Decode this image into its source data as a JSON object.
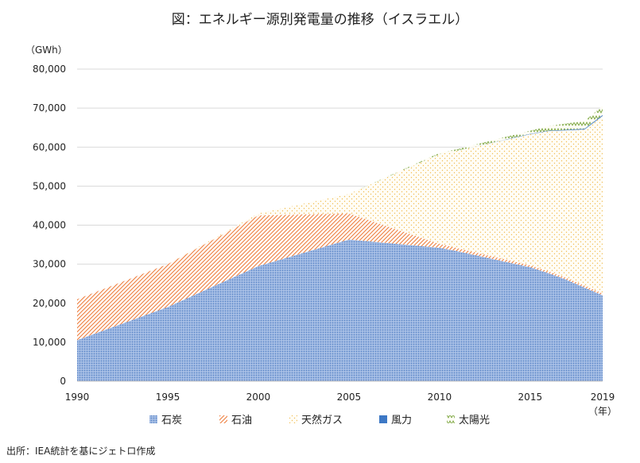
{
  "title": "図：エネルギー源別発電量の推移（イスラエル）",
  "source": "出所：IEA統計を基にジェトロ作成",
  "chart_data": {
    "type": "area",
    "stacked": true,
    "title": "図：エネルギー源別発電量の推移（イスラエル）",
    "ylabel": "（GWh）",
    "xlabel": "（年）",
    "ylim": [
      0,
      80000
    ],
    "xlim": [
      1990,
      2019
    ],
    "yticks": [
      "0",
      "10,000",
      "20,000",
      "30,000",
      "40,000",
      "50,000",
      "60,000",
      "70,000",
      "80,000"
    ],
    "xticks": [
      "1990",
      "1995",
      "2000",
      "2005",
      "2010",
      "2015",
      "2019"
    ],
    "x": [
      1990,
      1995,
      2000,
      2005,
      2010,
      2011,
      2015,
      2016,
      2017,
      2018,
      2019
    ],
    "grid": true,
    "legend_position": "bottom",
    "series": [
      {
        "name": "石炭",
        "color": "#6f95d1",
        "values": [
          10500,
          19000,
          29500,
          36300,
          34200,
          33300,
          29200,
          27700,
          26000,
          24000,
          22000
        ]
      },
      {
        "name": "石油",
        "color": "#ee7d3c",
        "values": [
          10500,
          11000,
          13000,
          6700,
          1000,
          800,
          500,
          500,
          500,
          500,
          500
        ]
      },
      {
        "name": "天然ガス",
        "color": "#f3c66a",
        "values": [
          0,
          0,
          500,
          5000,
          23000,
          25000,
          33600,
          35900,
          37800,
          40000,
          45500
        ]
      },
      {
        "name": "風力",
        "color": "#3d78c5",
        "values": [
          0,
          0,
          0,
          0,
          0,
          0,
          100,
          100,
          150,
          200,
          250
        ]
      },
      {
        "name": "太陽光",
        "color": "#77a43c",
        "values": [
          0,
          0,
          0,
          0,
          300,
          400,
          800,
          1200,
          1600,
          2000,
          2300
        ]
      }
    ]
  }
}
